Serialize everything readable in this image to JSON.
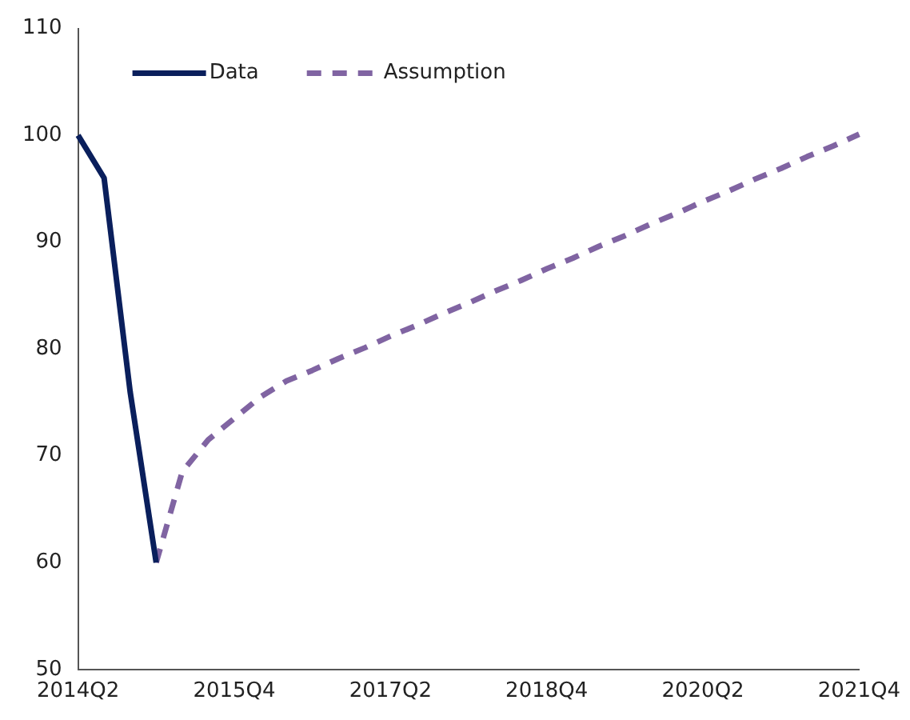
{
  "chart_data": {
    "type": "line",
    "categories": [
      "2014Q2",
      null,
      null,
      null,
      null,
      null,
      "2015Q4",
      null,
      null,
      null,
      null,
      null,
      "2017Q2",
      null,
      null,
      null,
      null,
      null,
      "2018Q4",
      null,
      null,
      null,
      null,
      null,
      "2020Q2",
      null,
      null,
      null,
      null,
      null,
      "2021Q4"
    ],
    "series": [
      {
        "name": "Data",
        "color": "#0a1f5c",
        "line_style": "solid",
        "values": [
          100,
          96,
          76,
          60,
          null,
          null,
          null,
          null,
          null,
          null,
          null,
          null,
          null,
          null,
          null,
          null,
          null,
          null,
          null,
          null,
          null,
          null,
          null,
          null,
          null,
          null,
          null,
          null,
          null,
          null,
          null
        ]
      },
      {
        "name": "Assumption",
        "color": "#8064a2",
        "line_style": "dashed",
        "values": [
          null,
          null,
          null,
          60,
          68.5,
          71.5,
          73.5,
          75.5,
          77,
          78,
          79.1,
          80.1,
          81.2,
          82.2,
          83.3,
          84.3,
          85.4,
          86.4,
          87.5,
          88.5,
          89.6,
          90.6,
          91.7,
          92.7,
          93.8,
          94.8,
          95.9,
          96.9,
          98,
          99,
          100.1
        ]
      }
    ],
    "ylim": [
      50,
      110
    ],
    "yticks": [
      50,
      60,
      70,
      80,
      90,
      100,
      110
    ],
    "grid": false,
    "legend": "top left",
    "marker": "none"
  }
}
